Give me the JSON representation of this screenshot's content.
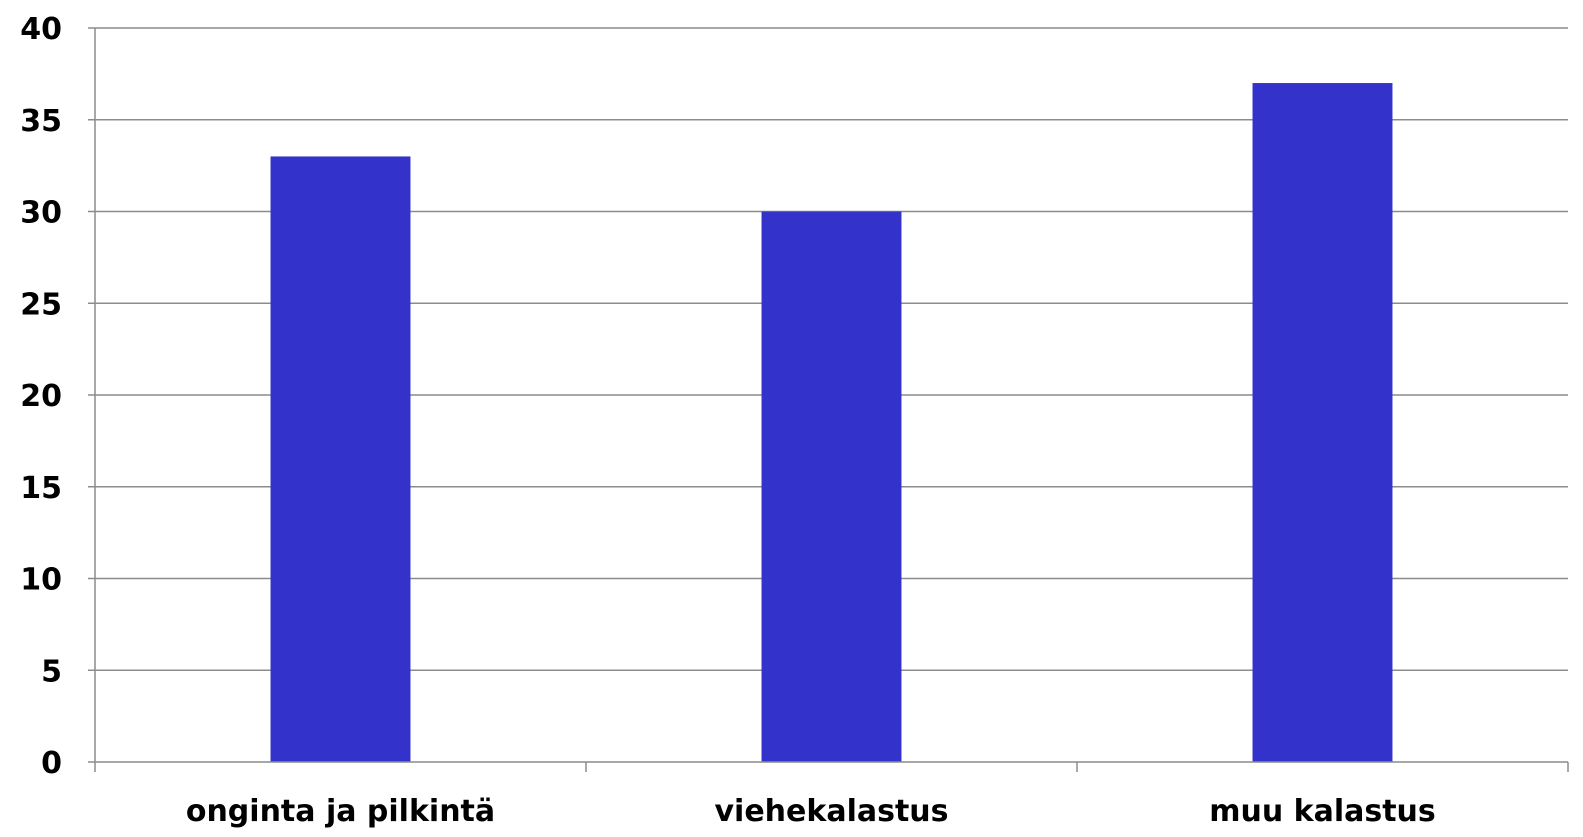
{
  "chart_data": {
    "type": "bar",
    "categories": [
      "onginta ja pilkintä",
      "viehekalastus",
      "muu kalastus"
    ],
    "values": [
      33,
      30,
      37
    ],
    "title": "",
    "xlabel": "",
    "ylabel": "",
    "ylim": [
      0,
      40
    ],
    "yticks": [
      0,
      5,
      10,
      15,
      20,
      25,
      30,
      35,
      40
    ],
    "grid": true,
    "legend": "none",
    "bar_color": "#3333cc"
  }
}
